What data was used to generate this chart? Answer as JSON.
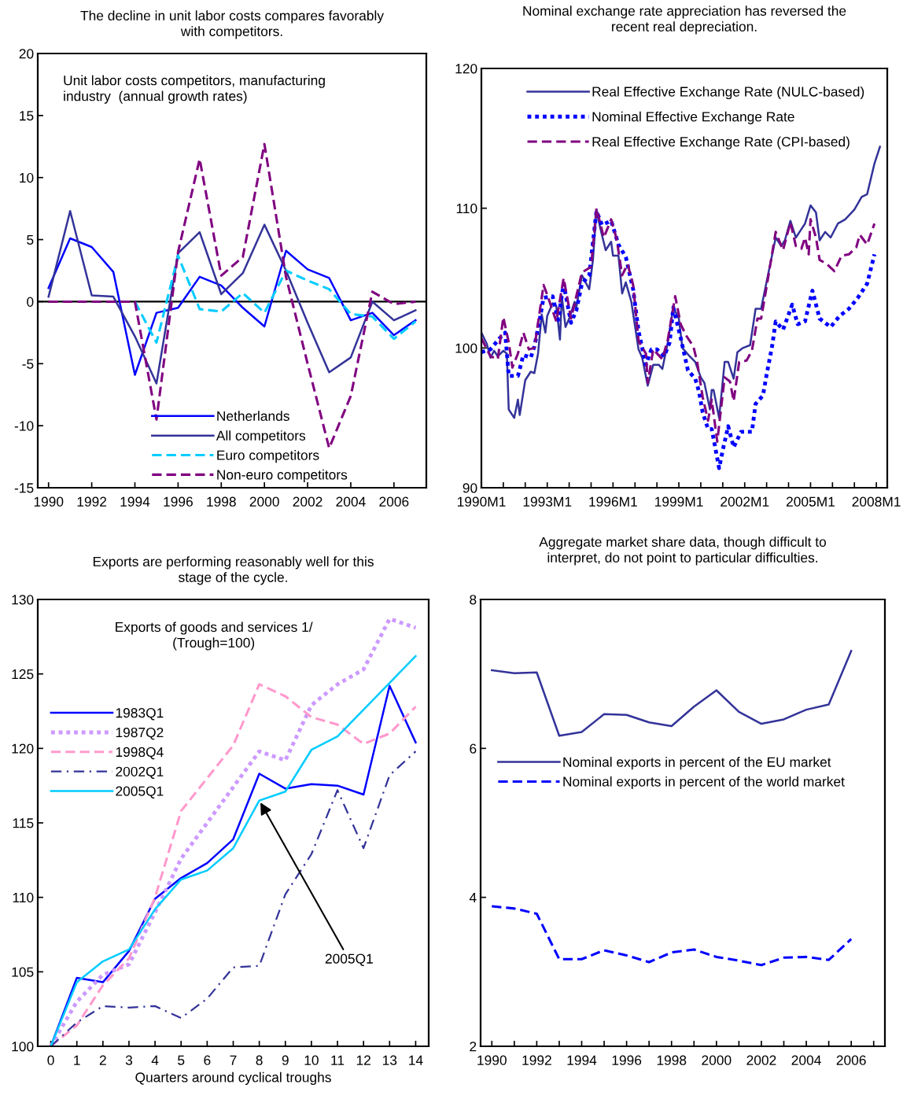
{
  "chart_data": [
    {
      "type": "line",
      "title": "The decline in unit labor costs compares favorably\nwith competitors.",
      "annotations": [
        "Unit labor costs competitors, manufacturing\nindustry  (annual growth rates)"
      ],
      "x": [
        1990,
        1991,
        1992,
        1993,
        1994,
        1995,
        1996,
        1997,
        1998,
        1999,
        2000,
        2001,
        2002,
        2003,
        2004,
        2005,
        2006,
        2007
      ],
      "series": [
        {
          "name": "Netherlands",
          "color": "#0000ff",
          "line_style": "solid",
          "values": [
            1.1,
            5.1,
            4.4,
            2.4,
            -5.9,
            -0.9,
            -0.5,
            2.0,
            1.3,
            -0.5,
            -2.0,
            4.1,
            2.6,
            1.9,
            -1.5,
            -0.9,
            -2.7,
            -1.5
          ]
        },
        {
          "name": "All competitors",
          "color": "#333399",
          "line_style": "solid",
          "values": [
            0.4,
            7.3,
            0.5,
            0.4,
            -2.8,
            -6.6,
            3.9,
            5.6,
            0.6,
            2.3,
            6.2,
            2.5,
            -1.7,
            -5.7,
            -4.5,
            0.0,
            -1.5,
            -0.7
          ]
        },
        {
          "name": "Euro competitors",
          "color": "#00ccff",
          "line_style": "dashed",
          "values": [
            null,
            null,
            null,
            null,
            0,
            -3.3,
            3.7,
            -0.6,
            -0.8,
            0.7,
            -0.9,
            2.5,
            1.7,
            1.0,
            -1.0,
            -1.2,
            -3.0,
            -1.6
          ]
        },
        {
          "name": "Non-euro competitors",
          "color": "#800080",
          "line_style": "dashed",
          "values": [
            0,
            0,
            0,
            0,
            0,
            -9.5,
            4.0,
            11.5,
            2.1,
            3.6,
            12.7,
            2.0,
            -5.0,
            -11.8,
            -7.6,
            0.8,
            -0.2,
            0.0
          ]
        }
      ],
      "xlim": [
        1989.5,
        2007.5
      ],
      "xticks": [
        1990,
        1992,
        1994,
        1996,
        1998,
        2000,
        2002,
        2004,
        2006
      ],
      "ylim": [
        -15,
        20
      ],
      "yticks": [
        -15,
        -10,
        -5,
        0,
        5,
        10,
        15,
        20
      ],
      "ref_lines": [
        {
          "axis": "y",
          "value": 0,
          "color": "#000000"
        }
      ],
      "legend": "bottom",
      "grid": false
    },
    {
      "type": "line",
      "title": "Nominal exchange rate appreciation has reversed the\nrecent real depreciation.",
      "series": [
        {
          "name": "Real Effective Exchange Rate (NULC-based)",
          "color": "#333399",
          "line_style": "solid",
          "x": [
            "1990-01",
            "1990-04",
            "1990-06",
            "1990-08",
            "1990-10",
            "1991-01",
            "1991-03",
            "1991-04",
            "1991-07",
            "1991-09",
            "1991-10",
            "1992-01",
            "1992-04",
            "1992-06",
            "1992-08",
            "1992-10",
            "1992-12",
            "1993-01",
            "1993-04",
            "1993-06",
            "1993-08",
            "1993-09",
            "1993-11",
            "1994-01",
            "1994-04",
            "1994-05",
            "1994-08",
            "1994-12",
            "1995-02",
            "1995-04",
            "1995-06",
            "1995-09",
            "1995-12",
            "1996-01",
            "1996-04",
            "1996-06",
            "1996-08",
            "1996-11",
            "1997-03",
            "1997-05",
            "1997-08",
            "1997-11",
            "1998-02",
            "1998-04",
            "1998-07",
            "1998-10",
            "1999-01",
            "1999-03",
            "1999-07",
            "1999-10",
            "2000-01",
            "2000-03",
            "2000-06",
            "2000-07",
            "2000-08",
            "2000-11",
            "2001-02",
            "2001-04",
            "2001-07",
            "2001-09",
            "2001-12",
            "2002-04",
            "2002-07",
            "2002-10",
            "2003-02",
            "2003-06",
            "2003-09",
            "2003-11",
            "2004-02",
            "2004-05",
            "2004-08",
            "2004-10",
            "2005-01",
            "2005-04",
            "2005-06",
            "2005-09",
            "2005-12",
            "2006-04",
            "2006-08",
            "2007-01",
            "2007-05",
            "2007-08",
            "2007-12",
            "2008-03"
          ],
          "values": [
            101.1,
            100.3,
            99.3,
            99.8,
            99.4,
            99.8,
            99.6,
            95.6,
            95.0,
            96.3,
            95.2,
            97.7,
            98.3,
            98.2,
            99.6,
            102.4,
            101.1,
            102.3,
            103.2,
            103.0,
            100.6,
            103.7,
            101.5,
            102.1,
            103.3,
            102.9,
            105.2,
            104.2,
            106.3,
            109.9,
            108.6,
            107.0,
            107.6,
            106.6,
            106.6,
            103.9,
            104.7,
            103.3,
            99.9,
            99.3,
            97.3,
            98.8,
            98.8,
            98.5,
            100.4,
            102.9,
            102.1,
            100.0,
            99.4,
            99.0,
            97.9,
            97.5,
            95.6,
            97.0,
            97.0,
            95.0,
            99.0,
            99.0,
            97.8,
            99.7,
            100.0,
            100.2,
            102.8,
            102.8,
            105.4,
            107.9,
            107.3,
            107.7,
            109.1,
            107.9,
            108.5,
            108.9,
            110.2,
            109.7,
            107.7,
            108.3,
            107.9,
            108.9,
            109.2,
            109.9,
            110.8,
            111.0,
            113.2,
            114.4
          ]
        },
        {
          "name": "Nominal Effective Exchange Rate",
          "color": "#0000ff",
          "line_style": "dotted",
          "x": [
            "1990-01",
            "1990-06",
            "1990-11",
            "1991-02",
            "1991-04",
            "1991-09",
            "1991-12",
            "1992-04",
            "1992-06",
            "1992-09",
            "1992-11",
            "1993-04",
            "1993-07",
            "1993-10",
            "1994-02",
            "1994-05",
            "1994-08",
            "1994-12",
            "1995-04",
            "1995-07",
            "1995-12",
            "1996-04",
            "1996-08",
            "1996-12",
            "1997-03",
            "1997-07",
            "1997-10",
            "1998-01",
            "1998-05",
            "1998-08",
            "1998-10",
            "1999-02",
            "1999-06",
            "1999-10",
            "1999-12",
            "2000-02",
            "2000-05",
            "2000-07",
            "2000-09",
            "2000-11",
            "2001-01",
            "2001-04",
            "2001-07",
            "2001-11",
            "2002-05",
            "2002-07",
            "2002-11",
            "2003-01",
            "2003-04",
            "2003-06",
            "2003-10",
            "2004-03",
            "2004-06",
            "2004-10",
            "2005-02",
            "2005-06",
            "2005-12",
            "2006-05",
            "2006-10",
            "2007-03",
            "2007-08",
            "2007-12"
          ],
          "values": [
            99.7,
            99.9,
            100.7,
            101.1,
            98.0,
            98.0,
            99.5,
            99.3,
            100.1,
            102.1,
            103.6,
            103.7,
            102.0,
            104.6,
            101.8,
            102.7,
            104.6,
            105.2,
            109.8,
            108.8,
            109.1,
            107.4,
            106.5,
            104.2,
            101.2,
            98.8,
            99.9,
            99.9,
            99.4,
            100.4,
            102.9,
            100.7,
            98.4,
            97.8,
            96.9,
            95.4,
            94.2,
            94.2,
            92.8,
            91.4,
            92.7,
            94.4,
            92.9,
            94.0,
            94.0,
            96.0,
            96.6,
            98.1,
            100.1,
            101.9,
            101.3,
            103.1,
            101.7,
            101.9,
            104.1,
            102.1,
            101.5,
            102.3,
            102.8,
            103.6,
            104.6,
            106.7
          ]
        },
        {
          "name": "Real Effective Exchange Rate (CPI-based)",
          "color": "#800080",
          "line_style": "dashed",
          "x": [
            "1990-01",
            "1990-06",
            "1990-10",
            "1991-01",
            "1991-04",
            "1991-06",
            "1991-09",
            "1991-12",
            "1992-03",
            "1992-06",
            "1992-11",
            "1993-01",
            "1993-06",
            "1993-10",
            "1994-02",
            "1994-08",
            "1995-01",
            "1995-04",
            "1995-08",
            "1995-12",
            "1996-03",
            "1996-06",
            "1996-09",
            "1996-12",
            "1997-03",
            "1997-07",
            "1997-08",
            "1997-11",
            "1998-04",
            "1998-07",
            "1998-11",
            "1999-02",
            "1999-05",
            "1999-09",
            "1999-11",
            "2000-02",
            "2000-05",
            "2000-07",
            "2000-10",
            "2001-02",
            "2001-05",
            "2001-07",
            "2001-10",
            "2002-02",
            "2002-05",
            "2002-08",
            "2002-10",
            "2003-01",
            "2003-06",
            "2003-10",
            "2004-02",
            "2004-05",
            "2004-08",
            "2004-10",
            "2004-12",
            "2005-01",
            "2005-04",
            "2005-06",
            "2005-10",
            "2006-02",
            "2006-06",
            "2006-10",
            "2007-02",
            "2007-04",
            "2007-08",
            "2007-12"
          ],
          "values": [
            100.7,
            99.4,
            99.2,
            102.2,
            100.4,
            98.6,
            99.6,
            101.1,
            99.9,
            100.0,
            104.5,
            103.8,
            101.9,
            105.0,
            102.1,
            105.4,
            105.8,
            110.0,
            107.9,
            109.2,
            107.8,
            105.2,
            106.0,
            104.5,
            100.5,
            99.6,
            97.5,
            99.9,
            99.2,
            100.6,
            103.7,
            101.7,
            100.9,
            100.1,
            99.0,
            96.5,
            94.8,
            96.3,
            93.3,
            97.9,
            97.6,
            96.2,
            99.0,
            99.1,
            99.8,
            102.1,
            102.1,
            104.4,
            108.3,
            107.0,
            109.0,
            107.3,
            107.1,
            107.9,
            106.7,
            109.2,
            107.9,
            106.3,
            106.0,
            105.5,
            106.6,
            106.7,
            107.2,
            108.1,
            107.4,
            108.9
          ]
        }
      ],
      "xlim": [
        "1990-01",
        "2008-07"
      ],
      "xticks": [
        {
          "value": "1990-01",
          "label": "1990M1"
        },
        {
          "value": "1991-01",
          "label": null
        },
        {
          "value": "1992-01",
          "label": null
        },
        {
          "value": "1993-01",
          "label": "1993M1"
        },
        {
          "value": "1994-01",
          "label": null
        },
        {
          "value": "1995-01",
          "label": null
        },
        {
          "value": "1996-01",
          "label": "1996M1"
        },
        {
          "value": "1997-01",
          "label": null
        },
        {
          "value": "1998-01",
          "label": null
        },
        {
          "value": "1999-01",
          "label": "1999M1"
        },
        {
          "value": "2000-01",
          "label": null
        },
        {
          "value": "2001-01",
          "label": null
        },
        {
          "value": "2002-01",
          "label": "2002M1"
        },
        {
          "value": "2003-01",
          "label": null
        },
        {
          "value": "2004-01",
          "label": null
        },
        {
          "value": "2005-01",
          "label": "2005M1"
        },
        {
          "value": "2006-01",
          "label": null
        },
        {
          "value": "2007-01",
          "label": null
        },
        {
          "value": "2008-01",
          "label": "2008M1"
        }
      ],
      "ylim": [
        90,
        120
      ],
      "yticks": [
        90,
        100,
        110,
        120
      ],
      "legend": "top",
      "grid": false
    },
    {
      "type": "line",
      "title": "Exports are performing reasonably well for this\nstage of the cycle.",
      "xlabel": "Quarters around cyclical troughs",
      "annotations": [
        "Exports of goods and services 1/\n(Trough=100)",
        {
          "text": "2005Q1",
          "x": 8,
          "y": 116.5
        }
      ],
      "x": [
        0,
        1,
        2,
        3,
        4,
        5,
        6,
        7,
        8,
        9,
        10,
        11,
        12,
        13,
        14
      ],
      "series": [
        {
          "name": "1983Q1",
          "color": "#0000ff",
          "line_style": "solid",
          "values": [
            100,
            104.6,
            104.3,
            106.4,
            109.9,
            111.3,
            112.3,
            113.9,
            118.3,
            117.3,
            117.6,
            117.5,
            116.9,
            124.2,
            120.4
          ]
        },
        {
          "name": "1987Q2",
          "color": "#cc99ff",
          "line_style": "dotted",
          "values": [
            100,
            103.0,
            104.8,
            105.5,
            109.0,
            112.6,
            115.0,
            117.4,
            119.8,
            119.2,
            122.9,
            124.3,
            125.3,
            128.7,
            128.1
          ]
        },
        {
          "name": "1998Q4",
          "color": "#ff99cc",
          "line_style": "dashed",
          "values": [
            100,
            101.4,
            104.1,
            105.9,
            110.0,
            115.8,
            118.0,
            120.2,
            124.3,
            123.5,
            122.1,
            121.6,
            120.3,
            121.0,
            122.8
          ]
        },
        {
          "name": "2002Q1",
          "color": "#333399",
          "line_style": "dashdot",
          "values": [
            100,
            101.6,
            102.7,
            102.6,
            102.7,
            101.9,
            103.2,
            105.3,
            105.4,
            110.2,
            112.9,
            117.2,
            113.3,
            118.2,
            119.8
          ]
        },
        {
          "name": "2005Q1",
          "color": "#00ccff",
          "line_style": "solid",
          "values": [
            100,
            104.3,
            105.7,
            106.5,
            109.2,
            111.2,
            111.8,
            113.3,
            116.5,
            117.1,
            119.9,
            120.8,
            122.6,
            124.4,
            126.2
          ]
        }
      ],
      "xlim": [
        -0.5,
        14.5
      ],
      "xticks": [
        0,
        1,
        2,
        3,
        4,
        5,
        6,
        7,
        8,
        9,
        10,
        11,
        12,
        13,
        14
      ],
      "ylim": [
        100,
        130
      ],
      "yticks": [
        100,
        105,
        110,
        115,
        120,
        125,
        130
      ],
      "legend": "top left",
      "grid": false
    },
    {
      "type": "line",
      "title": "Aggregate market share data, though difficult to\ninterpret, do not point to particular difficulties.",
      "x": [
        1990,
        1991,
        1992,
        1993,
        1994,
        1995,
        1996,
        1997,
        1998,
        1999,
        2000,
        2001,
        2002,
        2003,
        2004,
        2005,
        2006
      ],
      "series": [
        {
          "name": "Nominal exports in percent of the EU market",
          "color": "#333399",
          "line_style": "solid",
          "values": [
            7.05,
            7.01,
            7.02,
            6.17,
            6.22,
            6.46,
            6.45,
            6.35,
            6.3,
            6.56,
            6.78,
            6.49,
            6.33,
            6.39,
            6.52,
            6.59,
            7.31
          ]
        },
        {
          "name": "Nominal exports in percent of the world market",
          "color": "#0000ff",
          "line_style": "dashed",
          "values": [
            3.88,
            3.85,
            3.78,
            3.17,
            3.17,
            3.29,
            3.22,
            3.13,
            3.26,
            3.3,
            3.2,
            3.15,
            3.09,
            3.19,
            3.2,
            3.16,
            3.44
          ]
        }
      ],
      "xlim": [
        1989.5,
        2007.5
      ],
      "xticks": [
        1990,
        {
          "value": 1991,
          "label": null
        },
        1992,
        {
          "value": 1993,
          "label": null
        },
        1994,
        {
          "value": 1995,
          "label": null
        },
        1996,
        {
          "value": 1997,
          "label": null
        },
        1998,
        {
          "value": 1999,
          "label": null
        },
        2000,
        {
          "value": 2001,
          "label": null
        },
        2002,
        {
          "value": 2003,
          "label": null
        },
        2004,
        {
          "value": 2005,
          "label": null
        },
        2006,
        {
          "value": 2007,
          "label": null
        }
      ],
      "ylim": [
        2,
        8
      ],
      "yticks": [
        2,
        4,
        6,
        8
      ],
      "legend": "left",
      "grid": false
    }
  ]
}
